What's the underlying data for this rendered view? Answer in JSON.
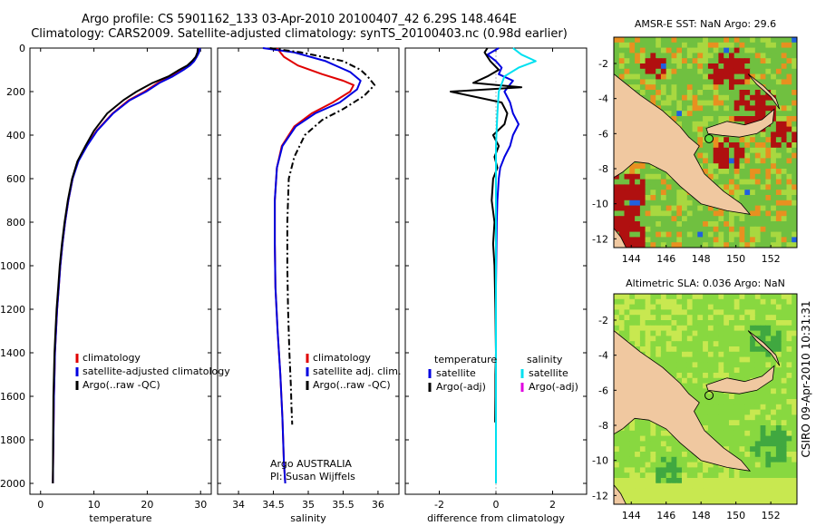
{
  "header": {
    "title_line1": "Argo profile: CS 5901162_133 03-Apr-2010 20100407_42 6.29S 148.464E",
    "title_line2": "Climatology: CARS2009. Satellite-adjusted climatology: synTS_20100403.nc (0.98d earlier)"
  },
  "credit": "CSIRO 09-Apr-2010 10:31:31",
  "chart_data": [
    {
      "id": "temperature",
      "type": "line",
      "xlabel": "temperature",
      "ylabel": "",
      "xlim": [
        -2,
        32
      ],
      "ylim": [
        2050,
        0
      ],
      "xticks": [
        0,
        10,
        20,
        30
      ],
      "yticks": [
        0,
        200,
        400,
        600,
        800,
        1000,
        1200,
        1400,
        1600,
        1800,
        2000
      ],
      "legend": [
        "climatology",
        "satellite-adjusted climatology",
        "Argo(..raw -QC)"
      ],
      "legend_position": "lower-center",
      "series": [
        {
          "name": "climatology",
          "color": "#e00000",
          "dash": "solid",
          "x": [
            29.8,
            29.6,
            29.2,
            28.6,
            27.9,
            26.5,
            24.5,
            22.0,
            19.5,
            16.5,
            13.5,
            10.5,
            8.6,
            7.0,
            6.0,
            5.2,
            4.6,
            4.1,
            3.7,
            3.4,
            3.1,
            2.9,
            2.7,
            2.6,
            2.5,
            2.4,
            2.3
          ],
          "y": [
            0,
            20,
            40,
            60,
            80,
            100,
            130,
            160,
            200,
            240,
            300,
            380,
            450,
            520,
            600,
            700,
            800,
            900,
            1000,
            1100,
            1200,
            1300,
            1400,
            1500,
            1600,
            1800,
            2000
          ]
        },
        {
          "name": "satellite-adjusted climatology",
          "color": "#0000e0",
          "dash": "solid",
          "x": [
            29.9,
            29.7,
            29.3,
            28.8,
            28.0,
            26.8,
            24.8,
            22.3,
            19.8,
            16.7,
            13.6,
            10.6,
            8.7,
            7.1,
            6.0,
            5.2,
            4.6,
            4.1,
            3.7,
            3.4,
            3.1,
            2.9,
            2.7,
            2.6,
            2.5,
            2.4,
            2.3
          ],
          "y": [
            0,
            20,
            40,
            60,
            80,
            100,
            130,
            160,
            200,
            240,
            300,
            380,
            450,
            520,
            600,
            700,
            800,
            900,
            1000,
            1100,
            1200,
            1300,
            1400,
            1500,
            1600,
            1800,
            2000
          ]
        },
        {
          "name": "Argo(..raw -QC)",
          "color": "#000000",
          "dash": "solid",
          "x": [
            29.5,
            29.4,
            29.1,
            28.4,
            27.5,
            26.0,
            24.0,
            21.0,
            18.0,
            15.5,
            12.5,
            10.0,
            8.4,
            6.9,
            5.9,
            5.1,
            4.5,
            4.0,
            3.6,
            3.3,
            3.0,
            2.8,
            2.6,
            2.5,
            2.4,
            2.35,
            2.3
          ],
          "y": [
            0,
            20,
            40,
            60,
            80,
            100,
            130,
            160,
            200,
            240,
            300,
            380,
            450,
            520,
            600,
            700,
            800,
            900,
            1000,
            1100,
            1200,
            1300,
            1400,
            1500,
            1600,
            1800,
            2000
          ]
        }
      ]
    },
    {
      "id": "salinity",
      "type": "line",
      "xlabel": "salinity",
      "ylabel": "",
      "xlim": [
        33.7,
        36.3
      ],
      "ylim": [
        2050,
        0
      ],
      "xticks": [
        34,
        34.5,
        35,
        35.5,
        36
      ],
      "yticks": [],
      "legend": [
        "climatology",
        "satellite adj. clim.",
        "Argo(..raw -QC)"
      ],
      "legend_position": "lower-right",
      "annotation_lines": [
        "Argo AUSTRALIA",
        "PI: Susan Wijffels"
      ],
      "series": [
        {
          "name": "climatology",
          "color": "#e00000",
          "dash": "solid",
          "x": [
            34.55,
            34.65,
            34.85,
            35.2,
            35.5,
            35.65,
            35.6,
            35.35,
            35.05,
            34.8,
            34.62,
            34.55,
            34.52,
            34.52,
            34.53,
            34.56,
            34.6,
            34.63,
            34.65,
            34.67
          ],
          "y": [
            0,
            40,
            80,
            120,
            150,
            170,
            200,
            250,
            300,
            360,
            450,
            550,
            700,
            900,
            1100,
            1300,
            1500,
            1700,
            1900,
            2000
          ]
        },
        {
          "name": "satellite adj. clim.",
          "color": "#0000e0",
          "dash": "solid",
          "x": [
            34.35,
            34.8,
            35.25,
            35.6,
            35.75,
            35.7,
            35.45,
            35.1,
            34.82,
            34.63,
            34.55,
            34.52,
            34.52,
            34.53,
            34.56,
            34.6,
            34.63,
            34.65,
            34.67
          ],
          "y": [
            0,
            20,
            60,
            110,
            150,
            190,
            250,
            300,
            360,
            450,
            550,
            700,
            900,
            1100,
            1300,
            1500,
            1700,
            1900,
            2000
          ]
        },
        {
          "name": "Argo(..raw -QC)",
          "color": "#000000",
          "dash": "dashdot",
          "x": [
            34.45,
            34.9,
            35.5,
            35.75,
            35.85,
            35.95,
            35.8,
            35.5,
            35.2,
            34.95,
            34.8,
            34.72,
            34.7,
            34.7,
            34.71,
            34.73,
            34.75,
            34.76,
            34.77
          ],
          "y": [
            0,
            20,
            60,
            100,
            130,
            170,
            220,
            280,
            330,
            400,
            500,
            600,
            800,
            1000,
            1200,
            1400,
            1550,
            1650,
            1730
          ]
        }
      ]
    },
    {
      "id": "difference",
      "type": "line",
      "xlabel": "difference from climatology",
      "ylabel": "",
      "xlim": [
        -3.2,
        3.2
      ],
      "ylim": [
        2050,
        0
      ],
      "xticks": [
        -2,
        0,
        2
      ],
      "yticks": [],
      "legend": [
        "temperature",
        "satellite",
        "Argo(-adj)",
        "salinity",
        "satellite",
        "Argo(-adj)"
      ],
      "legend_position": "lower-center",
      "series": [
        {
          "name": "temperature satellite",
          "color": "#0000e0",
          "dash": "solid",
          "x": [
            0.1,
            -0.3,
            0.0,
            0.2,
            0.1,
            0.6,
            0.3,
            0.5,
            0.6,
            0.8,
            0.6,
            0.5,
            0.3,
            0.15,
            0.1,
            0.05,
            0.03,
            0.02,
            0.01,
            0.0
          ],
          "y": [
            0,
            30,
            60,
            90,
            120,
            150,
            200,
            250,
            300,
            350,
            400,
            450,
            500,
            550,
            600,
            700,
            800,
            900,
            1000,
            1100
          ]
        },
        {
          "name": "temperature Argo(-adj)",
          "color": "#000000",
          "dash": "solid",
          "x": [
            -0.3,
            -0.4,
            -0.2,
            0.1,
            -0.3,
            -0.8,
            0.9,
            -1.6,
            0.2,
            0.4,
            0.3,
            -0.1,
            0.1,
            -0.05,
            0.05,
            -0.1,
            -0.15,
            -0.05,
            -0.1,
            -0.05,
            -0.02,
            0.0,
            -0.02,
            -0.02,
            -0.03
          ],
          "y": [
            0,
            20,
            60,
            100,
            130,
            160,
            180,
            200,
            250,
            300,
            350,
            400,
            450,
            500,
            550,
            600,
            700,
            800,
            900,
            1000,
            1200,
            1400,
            1500,
            1600,
            1720
          ]
        },
        {
          "name": "salinity satellite",
          "color": "#00e0f0",
          "dash": "solid",
          "x": [
            0.6,
            0.9,
            1.4,
            0.8,
            0.3,
            0.1,
            0.05,
            0.0,
            0.0,
            0.0,
            0.0,
            0.0,
            0.0,
            0.0,
            0.0
          ],
          "y": [
            0,
            30,
            60,
            90,
            130,
            200,
            300,
            450,
            600,
            800,
            1000,
            1300,
            1600,
            1800,
            2000
          ]
        },
        {
          "name": "salinity Argo(-adj)",
          "color": "#e000e0",
          "dash": "solid",
          "x": [],
          "y": []
        }
      ]
    }
  ],
  "maps": [
    {
      "id": "sst",
      "title": "AMSR-E SST: NaN Argo: 29.6",
      "lon_ticks": [
        144,
        146,
        148,
        150,
        152
      ],
      "lat_ticks": [
        -2,
        -4,
        -6,
        -8,
        -10,
        -12
      ],
      "lon_range": [
        143,
        153.5
      ],
      "lat_range": [
        -12.5,
        -0.5
      ],
      "float_lon": 148.46,
      "float_lat": -6.29,
      "colors": {
        "land": "#f0c8a0",
        "hot": "#b01010",
        "warm": "#e89020",
        "mid": "#70c040",
        "cool": "#a8d840",
        "marker": "#60e040"
      }
    },
    {
      "id": "sla",
      "title": "Altimetric SLA: 0.036 Argo: NaN",
      "lon_ticks": [
        144,
        146,
        148,
        150,
        152
      ],
      "lat_ticks": [
        -2,
        -4,
        -6,
        -8,
        -10,
        -12
      ],
      "lon_range": [
        143,
        153.5
      ],
      "lat_range": [
        -12.5,
        -0.5
      ],
      "float_lon": 148.46,
      "float_lat": -6.29,
      "colors": {
        "land": "#f0c8a0",
        "ocean": "#88d840",
        "light": "#c8e850",
        "dark": "#40a840",
        "marker": "#40a840"
      }
    }
  ]
}
